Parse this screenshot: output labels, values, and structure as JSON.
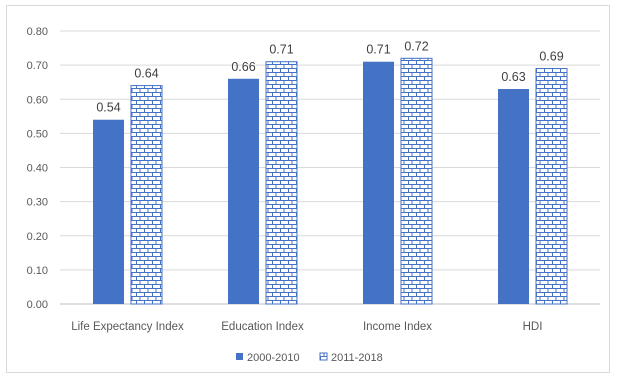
{
  "chart_data": {
    "type": "bar",
    "categories": [
      "Life Expectancy Index",
      "Education Index",
      "Income Index",
      "HDI"
    ],
    "series": [
      {
        "name": "2000-2010",
        "values": [
          0.54,
          0.66,
          0.71,
          0.63
        ],
        "color": "#4472c4",
        "pattern": "solid"
      },
      {
        "name": "2011-2018",
        "values": [
          0.64,
          0.71,
          0.72,
          0.69
        ],
        "color": "#4472c4",
        "pattern": "brick"
      }
    ],
    "data_labels": [
      [
        "0.54",
        "0.66",
        "0.71",
        "0.63"
      ],
      [
        "0.64",
        "0.71",
        "0.72",
        "0.69"
      ]
    ],
    "yticks": [
      "0.00",
      "0.10",
      "0.20",
      "0.30",
      "0.40",
      "0.50",
      "0.60",
      "0.70",
      "0.80"
    ],
    "ylim": [
      0,
      0.8
    ],
    "grid": true,
    "legend_position": "bottom"
  }
}
